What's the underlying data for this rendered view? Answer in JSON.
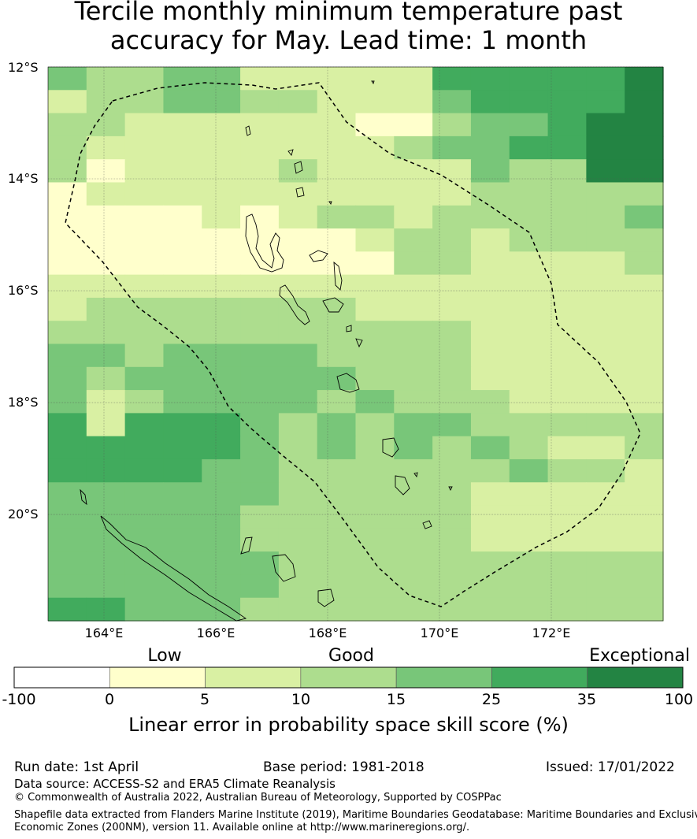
{
  "title": {
    "line1": "Tercile monthly minimum temperature past",
    "line2": "accuracy for May. Lead time: 1 month"
  },
  "axes": {
    "lat_labels": [
      "12°S",
      "14°S",
      "16°S",
      "18°S",
      "20°S"
    ],
    "lon_labels": [
      "164°E",
      "166°E",
      "168°E",
      "170°E",
      "172°E"
    ]
  },
  "colorbar": {
    "categories": [
      "Low",
      "Good",
      "Exceptional"
    ],
    "ticks": [
      "-100",
      "0",
      "5",
      "10",
      "15",
      "25",
      "35",
      "100"
    ],
    "colors": [
      "#ffffff",
      "#ffffcc",
      "#d9f0a3",
      "#addd8e",
      "#78c679",
      "#41ab5d",
      "#238443"
    ],
    "title": "Linear error in probability space skill score (%)"
  },
  "footer": {
    "run_date": "Run date: 1st April",
    "base_period": "Base period: 1981-2018",
    "issued": "Issued: 17/01/2022",
    "data_source": "Data source: ACCESS-S2 and ERA5 Climate Reanalysis",
    "copyright": "© Commonwealth of Australia 2022, Australian Bureau of Meteorology, Supported by COSPPac",
    "shapefile_line1": "Shapefile data extracted from Flanders Marine Institute (2019), Maritime Boundaries Geodatabase: Maritime Boundaries and Exclusive",
    "shapefile_line2": "Economic Zones (200NM), version 11. Available online at http://www.marineregions.org/."
  },
  "chart_data": {
    "type": "heatmap",
    "title": "Tercile monthly minimum temperature past accuracy for May. Lead time: 1 month",
    "lon_range": [
      163.0,
      174.0
    ],
    "lat_range": [
      -21.9,
      -12.0
    ],
    "lat_ticks": [
      -12,
      -14,
      -16,
      -18,
      -20
    ],
    "lon_ticks": [
      164,
      166,
      168,
      170,
      172
    ],
    "cell_size_deg": 0.833,
    "class_edges": [
      -100,
      0,
      5,
      10,
      15,
      25,
      35,
      100
    ],
    "grid_classes": [
      "4334422222555556",
      "2334433222455556",
      "3322222211344566",
      "3222222223445566",
      "3122223222243366",
      "1222222222233333",
      "1111212332333334",
      "1111111123323333",
      "1111111113322223",
      "2222222222222222",
      "2333333322222222",
      "3333333333322222",
      "4434444333322222",
      "4344444433322222",
      "4234444343332222",
      "5255543434433333",
      "5555543434343223",
      "5555443333334332",
      "4444443333322222",
      "4444433333322222",
      "4444433333322222",
      "4444443333333333",
      "4444443333333333",
      "5544433333333333"
    ],
    "colorbar_label": "Linear error in probability space skill score (%)"
  }
}
